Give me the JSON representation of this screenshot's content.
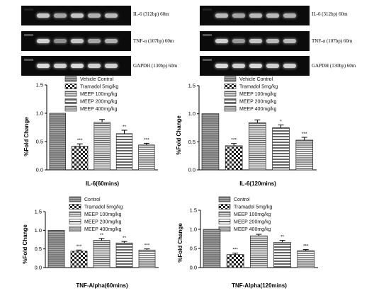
{
  "gels": [
    {
      "label": "IL-6 (312bp) 60m",
      "bands": [
        0.15,
        0.85,
        0.7,
        0.85,
        0.75,
        0.8
      ]
    },
    {
      "label": "TNF-α (107bp) 60m",
      "bands": [
        0.5,
        0.9,
        0.6,
        0.85,
        0.7,
        0.75
      ]
    },
    {
      "label": "GAPDH (130bp) 60m",
      "bands": [
        0.5,
        0.95,
        0.9,
        0.95,
        0.9,
        0.9
      ]
    },
    {
      "label": "IL-6 (312bp) 60m",
      "bands": [
        0.15,
        0.8,
        0.7,
        0.8,
        0.8,
        0.75
      ]
    },
    {
      "label": "TNF-α (107bp) 60m",
      "bands": [
        0.5,
        0.9,
        0.65,
        0.85,
        0.8,
        0.8
      ]
    },
    {
      "label": "GAPDH (130bp) 60m",
      "bands": [
        0.5,
        0.95,
        0.9,
        0.95,
        0.9,
        0.9
      ]
    }
  ],
  "colors": {
    "bar_fill": "#ffffff",
    "bar_stroke": "#222222",
    "dark_stripe": "#555555",
    "gel": "#0b0b0b",
    "band": "#e6e6e6"
  },
  "chart_data": [
    {
      "type": "bar",
      "categories": [
        "Vehicle Control",
        "Tramadol 5mg/kg",
        "MEEP 100mg/kg",
        "MEEP 200mg/kg",
        "MEEP 400mg/kg"
      ],
      "values": [
        1.0,
        0.42,
        0.84,
        0.64,
        0.44
      ],
      "errors": [
        0,
        0.04,
        0.05,
        0.06,
        0.03
      ],
      "significance": [
        "",
        "***",
        "",
        "**",
        "***"
      ],
      "xlabel": "IL-6(60mins)",
      "ylabel": "%Fold Change",
      "ylim": [
        0,
        1.5
      ],
      "yticks": [
        0.0,
        0.5,
        1.0,
        1.5
      ],
      "legend": [
        "Vehicle Control",
        "Tramadol 5mg/kg",
        "MEEP 100mg/kg",
        "MEEP 200mg/kg",
        "MEEP 400mg/kg"
      ],
      "legend_position": "top",
      "patterns": [
        "lines",
        "checker",
        "stripes",
        "hstripes",
        "densestripes"
      ]
    },
    {
      "type": "bar",
      "categories": [
        "Vehicle Control",
        "Tramadol 5mg/kg",
        "MEEP 100mg/kg",
        "MEEP 200mg/kg",
        "MEEP 400mg/kg"
      ],
      "values": [
        1.0,
        0.43,
        0.84,
        0.75,
        0.53
      ],
      "errors": [
        0,
        0.04,
        0.05,
        0.05,
        0.05
      ],
      "significance": [
        "",
        "***",
        "",
        "*",
        "***"
      ],
      "xlabel": "IL-6(120mins)",
      "ylabel": "%Fold Change",
      "ylim": [
        0,
        1.5
      ],
      "yticks": [
        0.0,
        0.5,
        1.0,
        1.5
      ],
      "legend": [
        "Vehicle Control",
        "Tramadol 5mg/kg",
        "MEEP 100mg/kg",
        "MEEP 200mg/kg",
        "MEEP 400mg/kg"
      ],
      "legend_position": "top",
      "patterns": [
        "lines",
        "checker",
        "stripes",
        "hstripes",
        "densestripes"
      ]
    },
    {
      "type": "bar",
      "categories": [
        "Control",
        "Tramadol 5mg/kg",
        "MEEP 100mg/kg",
        "MEEP 200mg/kg",
        "MEEP 400mg/kg"
      ],
      "values": [
        1.0,
        0.44,
        0.73,
        0.66,
        0.47
      ],
      "errors": [
        0,
        0.03,
        0.05,
        0.04,
        0.03
      ],
      "significance": [
        "",
        "***",
        "**",
        "**",
        "***"
      ],
      "xlabel": "TNF-Alpha(60mins)",
      "ylabel": "%Fold Change",
      "ylim": [
        0,
        1.5
      ],
      "yticks": [
        0.0,
        0.5,
        1.0,
        1.5
      ],
      "legend": [
        "Control",
        "Tramadol 5mg/kg",
        "MEEP 100mg/kg",
        "MEEP 200mg/kg",
        "MEEP 400mg/kg"
      ],
      "legend_position": "top",
      "patterns": [
        "lines",
        "checker",
        "stripes",
        "hstripes",
        "densestripes"
      ]
    },
    {
      "type": "bar",
      "categories": [
        "Control",
        "Tramadol 5mg/kg",
        "MEEP 100mg/kg",
        "MEEP 200mg/kg",
        "MEEP 400mg/kg"
      ],
      "values": [
        1.0,
        0.34,
        0.83,
        0.66,
        0.44
      ],
      "errors": [
        0,
        0.04,
        0.04,
        0.05,
        0.03
      ],
      "significance": [
        "",
        "***",
        "",
        "**",
        "***"
      ],
      "xlabel": "TNF-Alpha(120mins)",
      "ylabel": "%Fold Change",
      "ylim": [
        0,
        1.5
      ],
      "yticks": [
        0.0,
        0.5,
        1.0,
        1.5
      ],
      "legend": [
        "Control",
        "Tramadol 5mg/kg",
        "MEEP 100mg/kg",
        "MEEP 200mg/kg",
        "MEEP 400mg/kg"
      ],
      "legend_position": "top",
      "patterns": [
        "lines",
        "checker",
        "stripes",
        "hstripes",
        "densestripes"
      ]
    }
  ]
}
